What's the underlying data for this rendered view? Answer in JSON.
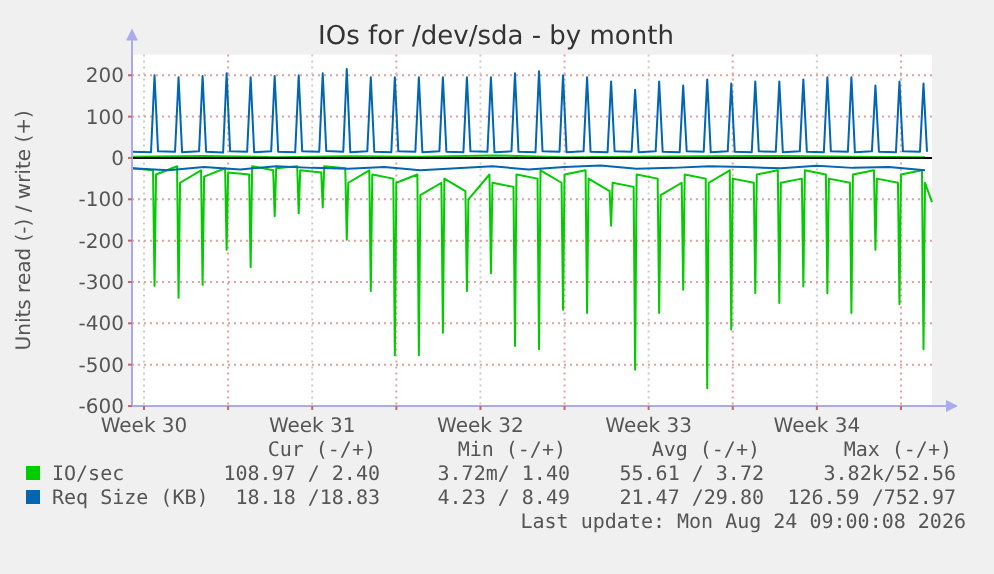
{
  "chart_data": {
    "type": "line",
    "title": "IOs for /dev/sda - by month",
    "ylabel": "Units read (-) / write (+)",
    "xlim": [
      "2026-07-23T00:00",
      "2026-08-25T07:00"
    ],
    "xticks": [
      {
        "value": "2026-07-23T12:00",
        "label": "Week 30"
      },
      {
        "value": "2026-07-30T12:00",
        "label": "Week 31"
      },
      {
        "value": "2026-08-06T12:00",
        "label": "Week 32"
      },
      {
        "value": "2026-08-13T12:00",
        "label": "Week 33"
      },
      {
        "value": "2026-08-20T12:00",
        "label": "Week 34"
      },
      {
        "value": "2026-07-27T00:00",
        "label": null
      },
      {
        "value": "2026-08-03T00:00",
        "label": null
      },
      {
        "value": "2026-08-10T00:00",
        "label": null
      },
      {
        "value": "2026-08-17T00:00",
        "label": null
      },
      {
        "value": "2026-08-24T00:00",
        "label": null
      }
    ],
    "ylim": [
      -600,
      250
    ],
    "yticks": [
      -600,
      -500,
      -400,
      -300,
      -200,
      -100,
      0,
      100,
      200
    ],
    "grid": true,
    "legend": "bottom",
    "ref_lines": [
      {
        "axis": "y",
        "value": 0,
        "color": "#000000"
      }
    ],
    "series": [
      {
        "name": "IO/sec",
        "color": "#00cc00",
        "x": [
          "2026-07-23T00:00",
          "2026-07-26T00:00",
          "2026-07-29T00:00",
          "2026-08-01T00:00",
          "2026-08-04T00:00",
          "2026-08-07T00:00",
          "2026-08-10T00:00",
          "2026-08-13T00:00",
          "2026-08-16T00:00",
          "2026-08-19T00:00",
          "2026-08-22T00:00",
          "2026-08-25T00:00"
        ],
        "values": [
          3,
          5,
          2,
          4,
          3,
          6,
          2,
          3,
          4,
          5,
          3,
          2
        ]
      },
      {
        "color": "#00cc00",
        "x": [
          "2026-07-23T00:00",
          "2026-07-23T21:00",
          "2026-07-23T22:30",
          "2026-07-24T00:00",
          "2026-07-24T21:00",
          "2026-07-24T22:30",
          "2026-07-25T00:00",
          "2026-07-25T21:00",
          "2026-07-25T22:30",
          "2026-07-26T00:00",
          "2026-07-26T21:00",
          "2026-07-26T22:30",
          "2026-07-27T00:00",
          "2026-07-27T21:00",
          "2026-07-27T22:30",
          "2026-07-28T00:00",
          "2026-07-28T21:00",
          "2026-07-28T22:30",
          "2026-07-29T00:00",
          "2026-07-29T21:00",
          "2026-07-29T22:30",
          "2026-07-30T00:00",
          "2026-07-30T21:00",
          "2026-07-30T22:30",
          "2026-07-31T00:00",
          "2026-07-31T21:00",
          "2026-07-31T22:30",
          "2026-08-01T00:00",
          "2026-08-01T21:00",
          "2026-08-01T22:30",
          "2026-08-02T00:00",
          "2026-08-02T21:00",
          "2026-08-02T22:30",
          "2026-08-03T00:00",
          "2026-08-03T21:00",
          "2026-08-03T22:30",
          "2026-08-04T00:00",
          "2026-08-04T21:00",
          "2026-08-04T22:30",
          "2026-08-05T00:00",
          "2026-08-05T21:00",
          "2026-08-05T22:30",
          "2026-08-06T00:00",
          "2026-08-06T21:00",
          "2026-08-06T22:30",
          "2026-08-07T00:00",
          "2026-08-07T21:00",
          "2026-08-07T22:30",
          "2026-08-08T00:00",
          "2026-08-08T21:00",
          "2026-08-08T22:30",
          "2026-08-09T00:00",
          "2026-08-09T21:00",
          "2026-08-09T22:30",
          "2026-08-10T00:00",
          "2026-08-10T21:00",
          "2026-08-10T22:30",
          "2026-08-11T00:00",
          "2026-08-11T21:00",
          "2026-08-11T22:30",
          "2026-08-12T00:00",
          "2026-08-12T21:00",
          "2026-08-12T22:30",
          "2026-08-13T00:00",
          "2026-08-13T21:00",
          "2026-08-13T22:30",
          "2026-08-14T00:00",
          "2026-08-14T21:00",
          "2026-08-14T22:30",
          "2026-08-15T00:00",
          "2026-08-15T21:00",
          "2026-08-15T22:30",
          "2026-08-16T00:00",
          "2026-08-16T21:00",
          "2026-08-16T22:30",
          "2026-08-17T00:00",
          "2026-08-17T21:00",
          "2026-08-17T22:30",
          "2026-08-18T00:00",
          "2026-08-18T21:00",
          "2026-08-18T22:30",
          "2026-08-19T00:00",
          "2026-08-19T21:00",
          "2026-08-19T22:30",
          "2026-08-20T00:00",
          "2026-08-20T21:00",
          "2026-08-20T22:30",
          "2026-08-21T00:00",
          "2026-08-21T21:00",
          "2026-08-21T22:30",
          "2026-08-22T00:00",
          "2026-08-22T21:00",
          "2026-08-22T22:30",
          "2026-08-23T00:00",
          "2026-08-23T21:00",
          "2026-08-23T22:30",
          "2026-08-24T00:00",
          "2026-08-24T21:00",
          "2026-08-24T22:30",
          "2026-08-25T00:00",
          "2026-08-25T07:00"
        ],
        "values": [
          -25,
          -30,
          -310,
          -40,
          -20,
          -338,
          -60,
          -30,
          -307,
          -45,
          -25,
          -222,
          -35,
          -40,
          -264,
          -20,
          -30,
          -141,
          -25,
          -20,
          -134,
          -30,
          -35,
          -120,
          -20,
          -25,
          -198,
          -60,
          -30,
          -322,
          -40,
          -50,
          -477,
          -60,
          -40,
          -477,
          -90,
          -60,
          -423,
          -50,
          -80,
          -322,
          -100,
          -40,
          -279,
          -60,
          -70,
          -455,
          -40,
          -50,
          -463,
          -30,
          -60,
          -367,
          -40,
          -30,
          -375,
          -50,
          -80,
          -164,
          -60,
          -70,
          -512,
          -40,
          -50,
          -375,
          -90,
          -60,
          -319,
          -40,
          -50,
          -557,
          -60,
          -30,
          -415,
          -50,
          -60,
          -327,
          -40,
          -30,
          -351,
          -60,
          -50,
          -311,
          -30,
          -40,
          -327,
          -50,
          -60,
          -375,
          -40,
          -30,
          -222,
          -50,
          -60,
          -354,
          -40,
          -30,
          -463,
          -60,
          -107
        ]
      },
      {
        "name": "Req Size (KB)",
        "color": "#0066b3",
        "x": [
          "2026-07-23T00:00",
          "2026-07-23T19:00",
          "2026-07-23T22:30",
          "2026-07-24T02:00",
          "2026-07-24T19:00",
          "2026-07-24T22:30",
          "2026-07-25T02:00",
          "2026-07-25T19:00",
          "2026-07-25T22:30",
          "2026-07-26T02:00",
          "2026-07-26T19:00",
          "2026-07-26T22:30",
          "2026-07-27T02:00",
          "2026-07-27T19:00",
          "2026-07-27T22:30",
          "2026-07-28T02:00",
          "2026-07-28T19:00",
          "2026-07-28T22:30",
          "2026-07-29T02:00",
          "2026-07-29T19:00",
          "2026-07-29T22:30",
          "2026-07-30T02:00",
          "2026-07-30T19:00",
          "2026-07-30T22:30",
          "2026-07-31T02:00",
          "2026-07-31T19:00",
          "2026-07-31T22:30",
          "2026-08-01T02:00",
          "2026-08-01T19:00",
          "2026-08-01T22:30",
          "2026-08-02T02:00",
          "2026-08-02T19:00",
          "2026-08-02T22:30",
          "2026-08-03T02:00",
          "2026-08-03T19:00",
          "2026-08-03T22:30",
          "2026-08-04T02:00",
          "2026-08-04T19:00",
          "2026-08-04T22:30",
          "2026-08-05T02:00",
          "2026-08-05T19:00",
          "2026-08-05T22:30",
          "2026-08-06T02:00",
          "2026-08-06T19:00",
          "2026-08-06T22:30",
          "2026-08-07T02:00",
          "2026-08-07T19:00",
          "2026-08-07T22:30",
          "2026-08-08T02:00",
          "2026-08-08T19:00",
          "2026-08-08T22:30",
          "2026-08-09T02:00",
          "2026-08-09T19:00",
          "2026-08-09T22:30",
          "2026-08-10T02:00",
          "2026-08-10T19:00",
          "2026-08-10T22:30",
          "2026-08-11T02:00",
          "2026-08-11T19:00",
          "2026-08-11T22:30",
          "2026-08-12T02:00",
          "2026-08-12T19:00",
          "2026-08-12T22:30",
          "2026-08-13T02:00",
          "2026-08-13T19:00",
          "2026-08-13T22:30",
          "2026-08-14T02:00",
          "2026-08-14T19:00",
          "2026-08-14T22:30",
          "2026-08-15T02:00",
          "2026-08-15T19:00",
          "2026-08-15T22:30",
          "2026-08-16T02:00",
          "2026-08-16T19:00",
          "2026-08-16T22:30",
          "2026-08-17T02:00",
          "2026-08-17T19:00",
          "2026-08-17T22:30",
          "2026-08-18T02:00",
          "2026-08-18T19:00",
          "2026-08-18T22:30",
          "2026-08-19T02:00",
          "2026-08-19T19:00",
          "2026-08-19T22:30",
          "2026-08-20T02:00",
          "2026-08-20T19:00",
          "2026-08-20T22:30",
          "2026-08-21T02:00",
          "2026-08-21T19:00",
          "2026-08-21T22:30",
          "2026-08-22T02:00",
          "2026-08-22T19:00",
          "2026-08-22T22:30",
          "2026-08-23T02:00",
          "2026-08-23T19:00",
          "2026-08-23T22:30",
          "2026-08-24T02:00",
          "2026-08-24T19:00",
          "2026-08-24T22:30",
          "2026-08-25T02:00"
        ],
        "values": [
          15,
          14,
          200,
          16,
          15,
          195,
          14,
          16,
          198,
          15,
          13,
          205,
          16,
          15,
          195,
          14,
          16,
          198,
          15,
          14,
          200,
          16,
          15,
          205,
          17,
          15,
          215,
          14,
          16,
          195,
          15,
          14,
          195,
          16,
          15,
          195,
          14,
          16,
          195,
          15,
          14,
          195,
          16,
          15,
          195,
          14,
          16,
          205,
          15,
          14,
          210,
          16,
          15,
          200,
          14,
          16,
          195,
          15,
          14,
          185,
          16,
          15,
          165,
          14,
          16,
          185,
          15,
          14,
          175,
          16,
          15,
          190,
          14,
          16,
          180,
          15,
          14,
          185,
          16,
          15,
          185,
          14,
          16,
          190,
          15,
          14,
          195,
          16,
          15,
          195,
          14,
          16,
          175,
          15,
          14,
          185,
          16,
          15,
          180,
          15
        ]
      },
      {
        "color": "#0066b3",
        "x": [
          "2026-07-23T00:00",
          "2026-07-24T12:00",
          "2026-07-26T00:00",
          "2026-07-27T12:00",
          "2026-07-29T00:00",
          "2026-07-30T12:00",
          "2026-08-01T00:00",
          "2026-08-02T12:00",
          "2026-08-04T00:00",
          "2026-08-05T12:00",
          "2026-08-07T00:00",
          "2026-08-08T12:00",
          "2026-08-10T00:00",
          "2026-08-11T12:00",
          "2026-08-13T00:00",
          "2026-08-14T12:00",
          "2026-08-16T00:00",
          "2026-08-17T12:00",
          "2026-08-19T00:00",
          "2026-08-20T12:00",
          "2026-08-22T00:00",
          "2026-08-23T12:00",
          "2026-08-25T00:00"
        ],
        "values": [
          -25,
          -30,
          -22,
          -28,
          -20,
          -24,
          -26,
          -22,
          -30,
          -25,
          -20,
          -28,
          -22,
          -18,
          -26,
          -24,
          -20,
          -22,
          -25,
          -19,
          -24,
          -22,
          -30
        ]
      }
    ],
    "annotations": [
      "Cur (-/+)",
      "Min (-/+)",
      "Avg (-/+)",
      "Max (-/+)",
      "108.97 / 2.40",
      "3.72m/ 1.40",
      "55.61 / 3.72",
      "3.82k/52.56",
      "18.18 /18.83",
      "4.23 / 8.49",
      "21.47 /29.80",
      "126.59 /752.97",
      "Last update: Mon Aug 24 09:00:08 2026"
    ]
  }
}
